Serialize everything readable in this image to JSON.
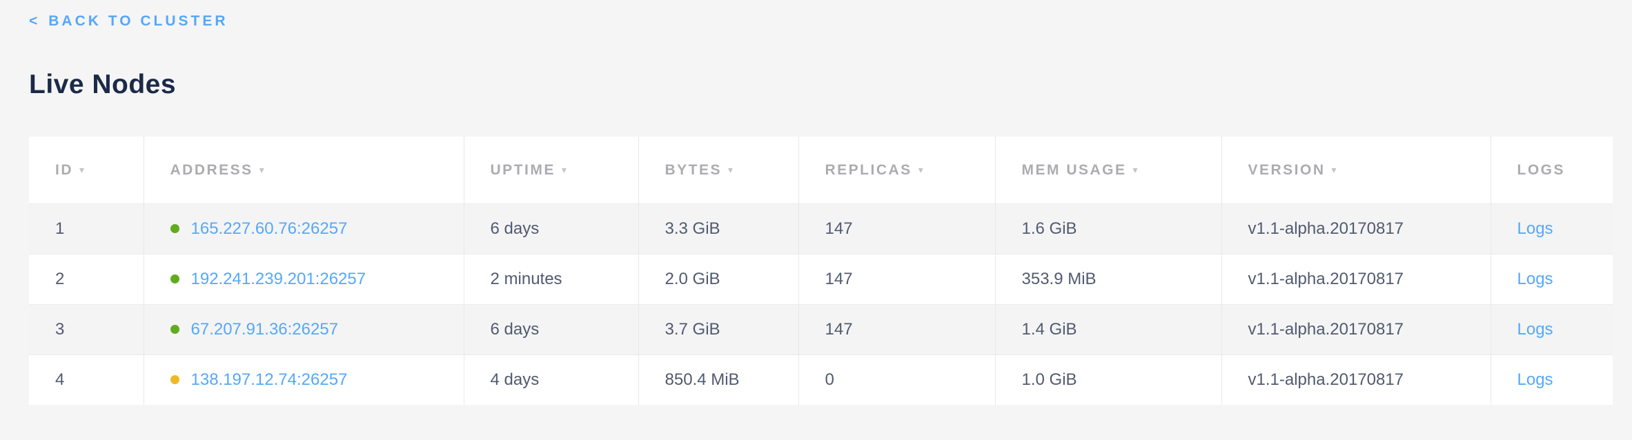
{
  "header": {
    "back_chevron": "<",
    "back_label": "BACK TO CLUSTER",
    "title": "Live Nodes"
  },
  "table": {
    "sort_arrow": "▾",
    "columns": [
      {
        "key": "id",
        "label": "ID",
        "sortable": true
      },
      {
        "key": "address",
        "label": "ADDRESS",
        "sortable": true
      },
      {
        "key": "uptime",
        "label": "UPTIME",
        "sortable": true
      },
      {
        "key": "bytes",
        "label": "BYTES",
        "sortable": true
      },
      {
        "key": "replicas",
        "label": "REPLICAS",
        "sortable": true
      },
      {
        "key": "mem_usage",
        "label": "MEM USAGE",
        "sortable": true
      },
      {
        "key": "version",
        "label": "VERSION",
        "sortable": true
      },
      {
        "key": "logs",
        "label": "LOGS",
        "sortable": false
      }
    ],
    "status_colors": {
      "green": "#62ab1e",
      "yellow": "#f0b826"
    },
    "rows": [
      {
        "id": "1",
        "status": "green",
        "address": "165.227.60.76:26257",
        "uptime": "6 days",
        "bytes": "3.3 GiB",
        "replicas": "147",
        "mem_usage": "1.6 GiB",
        "version": "v1.1-alpha.20170817",
        "logs_label": "Logs"
      },
      {
        "id": "2",
        "status": "green",
        "address": "192.241.239.201:26257",
        "uptime": "2 minutes",
        "bytes": "2.0 GiB",
        "replicas": "147",
        "mem_usage": "353.9 MiB",
        "version": "v1.1-alpha.20170817",
        "logs_label": "Logs"
      },
      {
        "id": "3",
        "status": "green",
        "address": "67.207.91.36:26257",
        "uptime": "6 days",
        "bytes": "3.7 GiB",
        "replicas": "147",
        "mem_usage": "1.4 GiB",
        "version": "v1.1-alpha.20170817",
        "logs_label": "Logs"
      },
      {
        "id": "4",
        "status": "yellow",
        "address": "138.197.12.74:26257",
        "uptime": "4 days",
        "bytes": "850.4 MiB",
        "replicas": "0",
        "mem_usage": "1.0 GiB",
        "version": "v1.1-alpha.20170817",
        "logs_label": "Logs"
      }
    ]
  },
  "colors": {
    "link_blue": "#55a8f8",
    "title_navy": "#1b2a47",
    "cell_text": "#515a6e",
    "header_gray": "#acacb0",
    "page_bg": "#f5f5f5",
    "alt_row_bg": "#f4f4f5"
  }
}
